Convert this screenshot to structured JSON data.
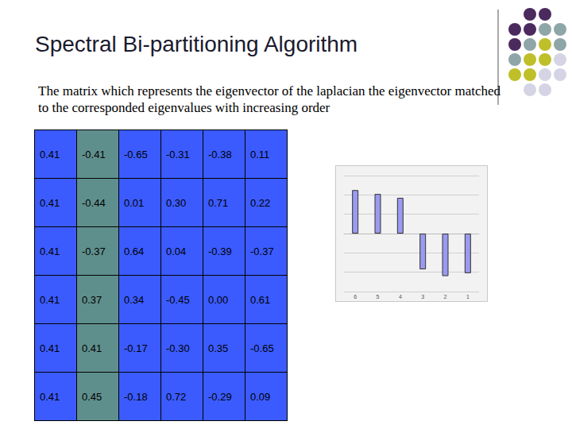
{
  "header": {
    "title": "Spectral Bi-partitioning Algorithm"
  },
  "text": "The  matrix which represents the eigenvector of the laplacian the eigenvector matched  to the corresponded eigenvalues with increasing order",
  "table": {
    "rows": [
      [
        "0.41",
        "-0.41",
        "-0.65",
        "-0.31",
        "-0.38",
        "0.11"
      ],
      [
        "0.41",
        "-0.44",
        "0.01",
        "0.30",
        "0.71",
        "0.22"
      ],
      [
        "0.41",
        "-0.37",
        "0.64",
        "0.04",
        "-0.39",
        "-0.37"
      ],
      [
        "0.41",
        "0.37",
        "0.34",
        "-0.45",
        "0.00",
        "0.61"
      ],
      [
        "0.41",
        "0.41",
        "-0.17",
        "-0.30",
        "0.35",
        "-0.65"
      ],
      [
        "0.41",
        "0.45",
        "-0.18",
        "0.72",
        "-0.29",
        "0.09"
      ]
    ]
  },
  "chart_data": {
    "type": "bar",
    "categories": [
      "6",
      "5",
      "4",
      "3",
      "2",
      "1"
    ],
    "values": [
      0.45,
      0.41,
      0.37,
      -0.37,
      -0.44,
      -0.41
    ],
    "color": "#9a9af0",
    "ylim": [
      -0.6,
      0.6
    ],
    "yticks": [
      -0.6,
      -0.4,
      -0.2,
      0,
      0.2,
      0.4,
      0.6
    ],
    "grid": true,
    "tick_labels": "x"
  }
}
